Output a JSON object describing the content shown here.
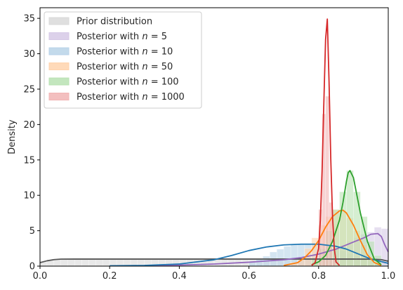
{
  "chart_data": {
    "type": "area",
    "title": "",
    "xlabel": "",
    "ylabel": "Density",
    "xlim": [
      0,
      1
    ],
    "ylim": [
      0,
      36.5
    ],
    "grid": false,
    "legend_position": "top-left",
    "x_ticks": [
      "0.0",
      "0.2",
      "0.4",
      "0.6",
      "0.8",
      "1.0"
    ],
    "y_ticks": [
      "0",
      "5",
      "10",
      "15",
      "20",
      "25",
      "30",
      "35"
    ],
    "series": [
      {
        "name": "Prior distribution",
        "legend_prefix": "Prior distribution",
        "legend_n": "",
        "color": "#555555",
        "fill": "#d9d9d9",
        "histogram": {
          "range": [
            0,
            1
          ],
          "bins": 50,
          "values": [
            0.6,
            0.9,
            1.0,
            1.0,
            1.0,
            1.0,
            1.0,
            1.0,
            1.0,
            1.0,
            1.0,
            1.0,
            1.0,
            1.0,
            1.0,
            1.0,
            1.0,
            1.0,
            1.0,
            1.0,
            1.0,
            1.0,
            1.0,
            1.0,
            1.0,
            1.0,
            1.0,
            1.0,
            1.0,
            1.0,
            1.0,
            1.0,
            1.0,
            1.0,
            1.0,
            1.0,
            1.0,
            1.0,
            1.0,
            1.0,
            1.0,
            1.0,
            1.0,
            1.0,
            1.0,
            1.0,
            1.0,
            1.0,
            0.95,
            0.9
          ]
        },
        "kde": {
          "x": [
            0.0,
            0.02,
            0.04,
            0.06,
            0.1,
            0.2,
            0.3,
            0.4,
            0.5,
            0.6,
            0.7,
            0.8,
            0.9,
            0.95,
            0.98,
            1.0
          ],
          "y": [
            0.5,
            0.75,
            0.92,
            0.99,
            1.0,
            1.0,
            1.0,
            1.0,
            1.0,
            1.0,
            1.0,
            1.0,
            1.0,
            0.98,
            0.92,
            0.7
          ]
        }
      },
      {
        "name": "Posterior with n = 5",
        "legend_prefix": "Posterior with ",
        "legend_n": "5",
        "color": "#9467bd",
        "fill": "#d6c9e6",
        "histogram": {
          "range": [
            0.74,
            1.0
          ],
          "bins": 13,
          "values": [
            0.8,
            1.2,
            1.5,
            1.8,
            2.2,
            2.6,
            3.0,
            3.5,
            4.0,
            4.5,
            4.8,
            5.5,
            5.3
          ]
        },
        "kde": {
          "x": [
            0.3,
            0.4,
            0.5,
            0.6,
            0.7,
            0.75,
            0.8,
            0.85,
            0.9,
            0.93,
            0.95,
            0.97,
            0.98,
            0.99,
            1.0
          ],
          "y": [
            0.1,
            0.15,
            0.3,
            0.55,
            0.9,
            1.2,
            1.7,
            2.4,
            3.4,
            4.0,
            4.5,
            4.6,
            4.2,
            3.0,
            2.0
          ]
        }
      },
      {
        "name": "Posterior with n = 10",
        "legend_prefix": "Posterior with ",
        "legend_n": "10",
        "color": "#1f77b4",
        "fill": "#b8d3e8",
        "histogram": {
          "range": [
            0.6,
            1.0
          ],
          "bins": 20,
          "values": [
            0.6,
            1.0,
            1.4,
            2.0,
            2.4,
            2.8,
            3.0,
            3.1,
            3.2,
            3.2,
            3.1,
            3.0,
            2.6,
            2.2,
            1.8,
            1.4,
            1.0,
            0.7,
            0.4,
            0.2
          ]
        },
        "kde": {
          "x": [
            0.2,
            0.3,
            0.4,
            0.5,
            0.55,
            0.6,
            0.65,
            0.7,
            0.75,
            0.8,
            0.85,
            0.88,
            0.9,
            0.95,
            1.0
          ],
          "y": [
            0.05,
            0.1,
            0.3,
            0.9,
            1.5,
            2.2,
            2.7,
            3.0,
            3.1,
            3.1,
            2.8,
            2.4,
            2.0,
            1.0,
            0.4
          ]
        }
      },
      {
        "name": "Posterior with n = 50",
        "legend_prefix": "Posterior with ",
        "legend_n": "50",
        "color": "#ff7f0e",
        "fill": "#ffd3ad",
        "histogram": {
          "range": [
            0.72,
            0.98
          ],
          "bins": 13,
          "values": [
            0.5,
            1.2,
            2.5,
            4.0,
            5.8,
            7.0,
            8.0,
            7.8,
            6.8,
            5.0,
            3.0,
            1.4,
            0.5
          ]
        },
        "kde": {
          "x": [
            0.7,
            0.74,
            0.76,
            0.78,
            0.8,
            0.82,
            0.84,
            0.86,
            0.87,
            0.88,
            0.9,
            0.92,
            0.94,
            0.96,
            0.98
          ],
          "y": [
            0.1,
            0.5,
            1.2,
            2.2,
            3.6,
            5.5,
            7.0,
            7.8,
            7.9,
            7.5,
            5.8,
            3.6,
            1.6,
            0.5,
            0.1
          ]
        }
      },
      {
        "name": "Posterior with n = 100",
        "legend_prefix": "Posterior with ",
        "legend_n": "100",
        "color": "#2ca02c",
        "fill": "#b9e2b3",
        "histogram": {
          "range": [
            0.78,
            0.98
          ],
          "bins": 10,
          "values": [
            1.0,
            2.5,
            5.0,
            8.0,
            10.5,
            13.5,
            10.5,
            7.0,
            3.5,
            1.5
          ]
        },
        "kde": {
          "x": [
            0.78,
            0.8,
            0.82,
            0.84,
            0.86,
            0.87,
            0.88,
            0.885,
            0.89,
            0.9,
            0.91,
            0.92,
            0.93,
            0.94,
            0.96,
            0.98
          ],
          "y": [
            0.2,
            0.6,
            1.5,
            3.5,
            6.5,
            9.0,
            12.0,
            13.2,
            13.5,
            12.5,
            10.0,
            7.5,
            5.5,
            3.5,
            1.0,
            0.2
          ]
        }
      },
      {
        "name": "Posterior with n = 1000",
        "legend_prefix": "Posterior with ",
        "legend_n": "1000",
        "color": "#d62728",
        "fill": "#f1b4b4",
        "histogram": {
          "range": [
            0.8,
            0.85
          ],
          "bins": 5,
          "values": [
            8.0,
            21.5,
            24.0,
            9.0,
            1.0
          ]
        },
        "kde": {
          "x": [
            0.78,
            0.79,
            0.8,
            0.805,
            0.81,
            0.815,
            0.82,
            0.825,
            0.83,
            0.835,
            0.84,
            0.845,
            0.85,
            0.86
          ],
          "y": [
            0.1,
            0.5,
            2.5,
            6.5,
            13.5,
            23.0,
            32.0,
            34.9,
            26.0,
            15.0,
            7.0,
            2.5,
            0.6,
            0.1
          ]
        }
      }
    ]
  }
}
